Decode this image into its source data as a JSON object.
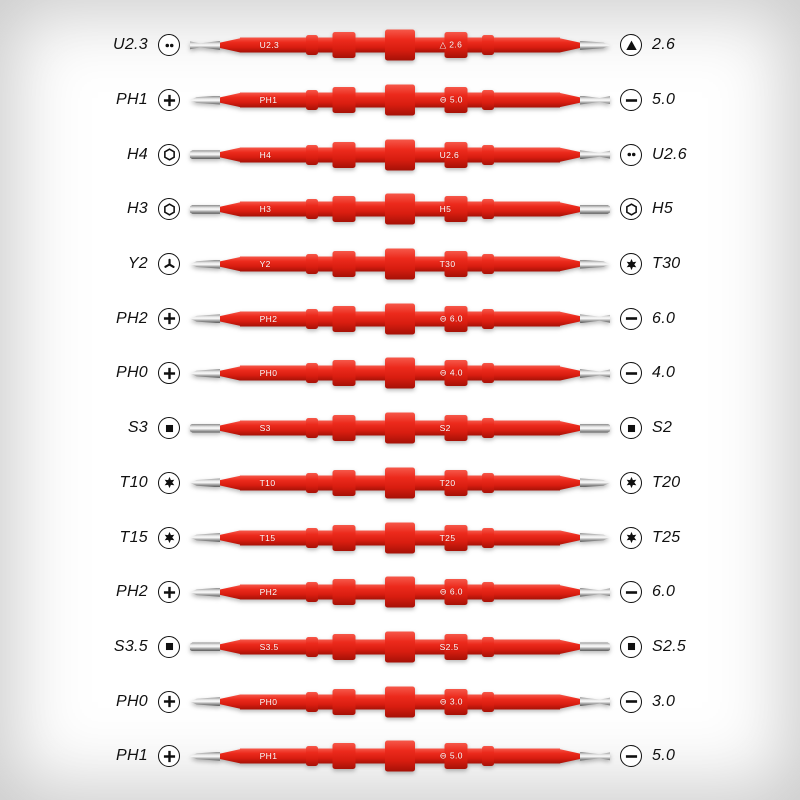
{
  "page": {
    "background_color": "#ffffff",
    "bit_red_color": "#e8261d",
    "metal_color": "#c8c8c8"
  },
  "rows": [
    {
      "left_label": "U2.3",
      "left_icon": "u2",
      "shaft_left_text": "U2.3",
      "shaft_right_text": "△ 2.6",
      "right_icon": "triangle",
      "right_label": "2.6"
    },
    {
      "left_label": "PH1",
      "left_icon": "phillips",
      "shaft_left_text": "PH1",
      "shaft_right_text": "⊖ 5.0",
      "right_icon": "slotted",
      "right_label": "5.0"
    },
    {
      "left_label": "H4",
      "left_icon": "hex",
      "shaft_left_text": "H4",
      "shaft_right_text": "U2.6",
      "right_icon": "u2",
      "right_label": "U2.6"
    },
    {
      "left_label": "H3",
      "left_icon": "hex",
      "shaft_left_text": "H3",
      "shaft_right_text": "H5",
      "right_icon": "hex",
      "right_label": "H5"
    },
    {
      "left_label": "Y2",
      "left_icon": "y-type",
      "shaft_left_text": "Y2",
      "shaft_right_text": "T30",
      "right_icon": "torx",
      "right_label": "T30"
    },
    {
      "left_label": "PH2",
      "left_icon": "phillips",
      "shaft_left_text": "PH2",
      "shaft_right_text": "⊖ 6.0",
      "right_icon": "slotted",
      "right_label": "6.0"
    },
    {
      "left_label": "PH0",
      "left_icon": "phillips",
      "shaft_left_text": "PH0",
      "shaft_right_text": "⊖ 4.0",
      "right_icon": "slotted",
      "right_label": "4.0"
    },
    {
      "left_label": "S3",
      "left_icon": "square",
      "shaft_left_text": "S3",
      "shaft_right_text": "S2",
      "right_icon": "square",
      "right_label": "S2"
    },
    {
      "left_label": "T10",
      "left_icon": "torx",
      "shaft_left_text": "T10",
      "shaft_right_text": "T20",
      "right_icon": "torx",
      "right_label": "T20"
    },
    {
      "left_label": "T15",
      "left_icon": "torx",
      "shaft_left_text": "T15",
      "shaft_right_text": "T25",
      "right_icon": "torx",
      "right_label": "T25"
    },
    {
      "left_label": "PH2",
      "left_icon": "phillips",
      "shaft_left_text": "PH2",
      "shaft_right_text": "⊖ 6.0",
      "right_icon": "slotted",
      "right_label": "6.0"
    },
    {
      "left_label": "S3.5",
      "left_icon": "square",
      "shaft_left_text": "S3.5",
      "shaft_right_text": "S2.5",
      "right_icon": "square",
      "right_label": "S2.5"
    },
    {
      "left_label": "PH0",
      "left_icon": "phillips",
      "shaft_left_text": "PH0",
      "shaft_right_text": "⊖ 3.0",
      "right_icon": "slotted",
      "right_label": "3.0"
    },
    {
      "left_label": "PH1",
      "left_icon": "phillips",
      "shaft_left_text": "PH1",
      "shaft_right_text": "⊖ 5.0",
      "right_icon": "slotted",
      "right_label": "5.0"
    }
  ]
}
